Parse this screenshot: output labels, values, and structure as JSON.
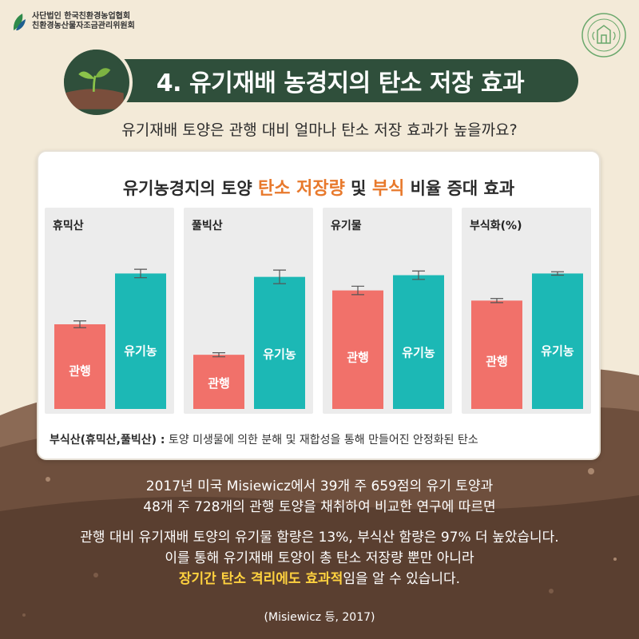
{
  "header": {
    "org_line1": "사단법인 한국친환경농업협회",
    "org_line2": "친환경농산물자조금관리위원회"
  },
  "title": "4. 유기재배 농경지의 탄소 저장 효과",
  "question": "유기재배 토양은 관행 대비 얼마나 탄소 저장 효과가 높을까요?",
  "card": {
    "title_pre": "유기농경지의 토양 ",
    "title_hl1": "탄소 저장량",
    "title_mid": " 및 ",
    "title_hl2": "부식",
    "title_post": " 비율 증대 효과",
    "note_term": "부식산(휴믹산,풀빅산) :",
    "note_desc": " 토양 미생물에 의한 분해 및 재합성을 통해 만들어진 안정화된 탄소"
  },
  "colors": {
    "conventional": "#f1716a",
    "organic": "#1cb8b5",
    "banner": "#2f4f3b",
    "highlight_orange": "#e8792c",
    "highlight_yellow": "#ffd23f"
  },
  "chart_data": [
    {
      "type": "bar",
      "panel_title": "휴믹산",
      "categories": [
        "관행",
        "유기농"
      ],
      "values": [
        0.5,
        0.8
      ],
      "errors": [
        0.02,
        0.025
      ],
      "ylim": [
        0,
        1
      ]
    },
    {
      "type": "bar",
      "panel_title": "풀빅산",
      "categories": [
        "관행",
        "유기농"
      ],
      "values": [
        0.32,
        0.78
      ],
      "errors": [
        0.012,
        0.04
      ],
      "ylim": [
        0,
        1
      ]
    },
    {
      "type": "bar",
      "panel_title": "유기물",
      "categories": [
        "관행",
        "유기농"
      ],
      "values": [
        0.7,
        0.79
      ],
      "errors": [
        0.025,
        0.025
      ],
      "ylim": [
        0,
        1
      ]
    },
    {
      "type": "bar",
      "panel_title": "부식화(%)",
      "categories": [
        "관행",
        "유기농"
      ],
      "values": [
        0.64,
        0.8
      ],
      "errors": [
        0.012,
        0.01
      ],
      "ylim": [
        0,
        1
      ]
    }
  ],
  "body": {
    "line1": "2017년 미국 Misiewicz에서 39개 주 659점의 유기 토양과",
    "line2": "48개 주 728개의 관행 토양을 채취하여 비교한 연구에 따르면",
    "line3": "관행 대비 유기재배 토양의 유기물 함량은 13%, 부식산 함량은 97% 더 높았습니다.",
    "line4": "이를 통해 유기재배 토양이 총 탄소 저장량 뿐만 아니라",
    "line5_hl": "장기간 탄소 격리에도 효과적",
    "line5_rest": "임을 알 수 있습니다.",
    "source": "(Misiewicz 등, 2017)"
  }
}
